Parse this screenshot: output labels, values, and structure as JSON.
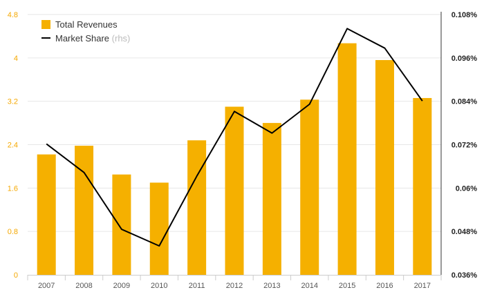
{
  "chart_data": {
    "type": "bar",
    "categories": [
      "2007",
      "2008",
      "2009",
      "2010",
      "2011",
      "2012",
      "2013",
      "2014",
      "2015",
      "2016",
      "2017"
    ],
    "series": [
      {
        "name": "Total Revenues",
        "type": "bar",
        "axis": "left",
        "color": "#f5b000",
        "values": [
          2.22,
          2.38,
          1.85,
          1.7,
          2.48,
          3.1,
          2.8,
          3.23,
          4.27,
          3.96,
          3.26
        ]
      },
      {
        "name": "Market Share",
        "name_suffix": "(rhs)",
        "type": "line",
        "axis": "right",
        "color": "#000000",
        "values": [
          0.0722,
          0.0643,
          0.0486,
          0.044,
          0.0633,
          0.0812,
          0.0752,
          0.0832,
          0.1041,
          0.0987,
          0.0841
        ]
      }
    ],
    "y_left": {
      "range": [
        0,
        4.8
      ],
      "ticks": [
        0,
        0.8,
        1.6,
        2.4,
        3.2,
        4,
        4.8
      ],
      "tick_labels": [
        "0",
        "0.8",
        "1.6",
        "2.4",
        "3.2",
        "4",
        "4.8"
      ],
      "color": "#f5a800"
    },
    "y_right": {
      "range": [
        0.036,
        0.108
      ],
      "ticks": [
        0.036,
        0.048,
        0.06,
        0.072,
        0.084,
        0.096,
        0.108
      ],
      "tick_labels": [
        "0.036%",
        "0.048%",
        "0.06%",
        "0.072%",
        "0.084%",
        "0.096%",
        "0.108%"
      ]
    },
    "grid": true,
    "legend": "top-left"
  }
}
